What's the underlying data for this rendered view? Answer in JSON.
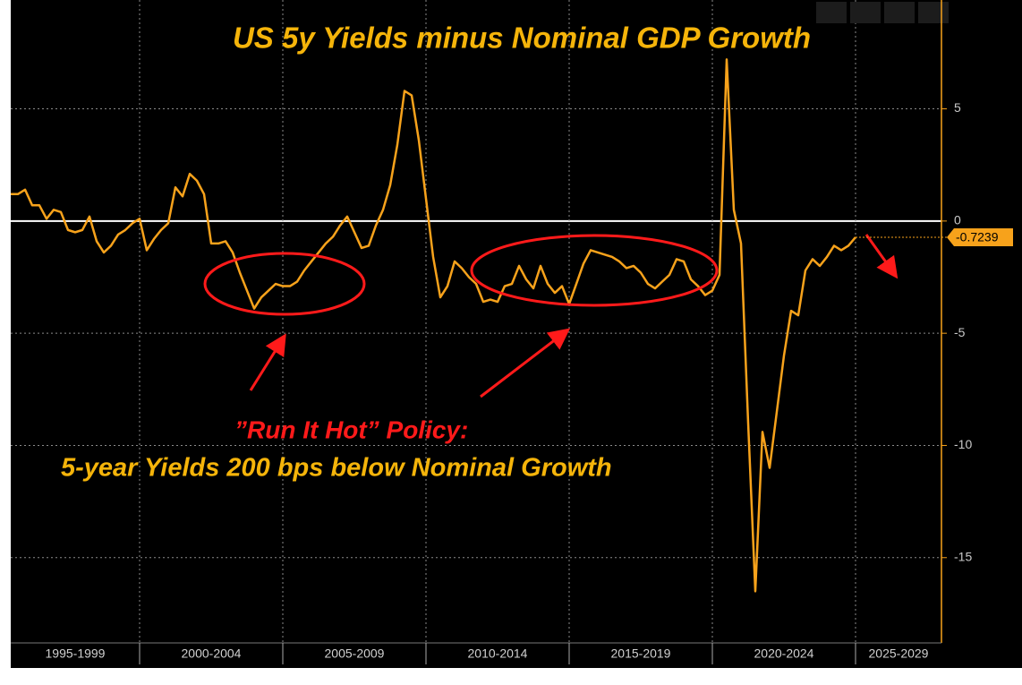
{
  "chart_data": {
    "type": "line",
    "title": "US 5y Yields minus Nominal GDP Growth",
    "annotations": [
      "”Run It Hot” Policy:",
      "5-year Yields 200 bps below Nominal Growth"
    ],
    "color": "#f7a21b",
    "x": [
      1995.5,
      1995.75,
      1996,
      1996.25,
      1996.5,
      1996.75,
      1997,
      1997.25,
      1997.5,
      1997.75,
      1998,
      1998.25,
      1998.5,
      1998.75,
      1999,
      1999.25,
      1999.5,
      1999.75,
      2000,
      2000.25,
      2000.5,
      2000.75,
      2001,
      2001.25,
      2001.5,
      2001.75,
      2002,
      2002.25,
      2002.5,
      2002.75,
      2003,
      2003.25,
      2003.5,
      2003.75,
      2004,
      2004.25,
      2004.5,
      2004.75,
      2005,
      2005.25,
      2005.5,
      2005.75,
      2006,
      2006.25,
      2006.5,
      2006.75,
      2007,
      2007.25,
      2007.5,
      2007.75,
      2008,
      2008.25,
      2008.5,
      2008.75,
      2009,
      2009.25,
      2009.5,
      2009.75,
      2010,
      2010.25,
      2010.5,
      2010.75,
      2011,
      2011.25,
      2011.5,
      2011.75,
      2012,
      2012.25,
      2012.5,
      2012.75,
      2013,
      2013.25,
      2013.5,
      2013.75,
      2014,
      2014.25,
      2014.5,
      2014.75,
      2015,
      2015.25,
      2015.5,
      2015.75,
      2016,
      2016.25,
      2016.5,
      2016.75,
      2017,
      2017.25,
      2017.5,
      2017.75,
      2018,
      2018.25,
      2018.5,
      2018.75,
      2019,
      2019.25,
      2019.5,
      2019.75,
      2020,
      2020.25,
      2020.5,
      2020.75,
      2021,
      2021.25,
      2021.5,
      2021.75,
      2022,
      2022.25,
      2022.5,
      2022.75,
      2023,
      2023.25,
      2023.5,
      2023.75,
      2024,
      2024.25,
      2024.5,
      2024.75,
      2025
    ],
    "values": [
      1.2,
      1.2,
      1.4,
      0.7,
      0.7,
      0.1,
      0.5,
      0.4,
      -0.4,
      -0.5,
      -0.4,
      0.2,
      -0.9,
      -1.4,
      -1.1,
      -0.6,
      -0.4,
      -0.1,
      0.1,
      -1.3,
      -0.8,
      -0.4,
      -0.1,
      1.5,
      1.1,
      2.1,
      1.8,
      1.2,
      -1.0,
      -1.0,
      -0.9,
      -1.4,
      -2.3,
      -3.1,
      -3.9,
      -3.4,
      -3.1,
      -2.8,
      -2.9,
      -2.9,
      -2.7,
      -2.2,
      -1.8,
      -1.4,
      -1.0,
      -0.7,
      -0.2,
      0.2,
      -0.5,
      -1.2,
      -1.1,
      -0.2,
      0.5,
      1.6,
      3.4,
      5.8,
      5.6,
      3.6,
      1.0,
      -1.6,
      -3.4,
      -2.9,
      -1.8,
      -2.1,
      -2.5,
      -2.8,
      -3.6,
      -3.5,
      -3.6,
      -2.9,
      -2.8,
      -2.0,
      -2.6,
      -3.0,
      -2.0,
      -2.8,
      -3.2,
      -2.9,
      -3.7,
      -2.8,
      -1.9,
      -1.3,
      -1.4,
      -1.5,
      -1.6,
      -1.8,
      -2.1,
      -2.0,
      -2.3,
      -2.8,
      -3.0,
      -2.7,
      -2.4,
      -1.7,
      -1.8,
      -2.6,
      -2.9,
      -3.3,
      -3.1,
      -2.4,
      7.2,
      0.5,
      -1.0,
      -9.0,
      -16.5,
      -9.4,
      -11.0,
      -8.5,
      -6.0,
      -4.0,
      -4.2,
      -2.2,
      -1.7,
      -2.0,
      -1.6,
      -1.1,
      -1.3,
      -1.1,
      -0.7239
    ],
    "xlim": [
      1995.5,
      2028
    ],
    "x_periods": [
      {
        "start": 1995,
        "end": 2000,
        "label": "1995-1999"
      },
      {
        "start": 2000,
        "end": 2005,
        "label": "2000-2004"
      },
      {
        "start": 2005,
        "end": 2010,
        "label": "2005-2009"
      },
      {
        "start": 2010,
        "end": 2015,
        "label": "2010-2014"
      },
      {
        "start": 2015,
        "end": 2020,
        "label": "2015-2019"
      },
      {
        "start": 2020,
        "end": 2025,
        "label": "2020-2024"
      },
      {
        "start": 2025,
        "end": 2030,
        "label": "2025-2029"
      }
    ],
    "ylim": [
      -18.8,
      9.85
    ],
    "yticks": [
      -15,
      -10,
      -5,
      0,
      5
    ],
    "grid": true
  }
}
